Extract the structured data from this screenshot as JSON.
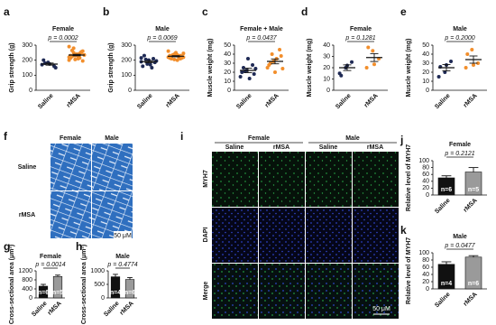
{
  "chart_data": [
    {
      "panel": "a",
      "type": "dot",
      "title": "Female",
      "annotation": "p = 0.0002",
      "ylabel": "Grip strength (g)",
      "categories": [
        "Saline",
        "rMSA"
      ],
      "colors": [
        "#1f2a55",
        "#f28e2b"
      ],
      "ylim": [
        0,
        300
      ],
      "yticks": [
        0,
        100,
        200,
        300
      ],
      "points": [
        [
          170,
          185,
          160,
          200,
          175,
          150,
          180
        ],
        [
          200,
          230,
          250,
          215,
          240,
          260,
          225,
          210,
          235,
          280,
          245,
          220,
          205,
          255,
          230,
          240,
          195,
          265,
          225,
          235,
          250,
          215,
          290,
          230
        ]
      ],
      "means": [
        174,
        234
      ],
      "errors": [
        7,
        5
      ]
    },
    {
      "panel": "b",
      "type": "dot",
      "title": "Male",
      "annotation": "p = 0.0069",
      "ylabel": "Grip strength (g)",
      "categories": [
        "Saline",
        "rMSA"
      ],
      "colors": [
        "#1f2a55",
        "#f28e2b"
      ],
      "ylim": [
        0,
        300
      ],
      "yticks": [
        0,
        100,
        200,
        300
      ],
      "points": [
        [
          190,
          175,
          210,
          160,
          200,
          185,
          230,
          170,
          195,
          205,
          150,
          215
        ],
        [
          220,
          240,
          210,
          230,
          250,
          215,
          225,
          200,
          245,
          235,
          220,
          260,
          205,
          230,
          215,
          240,
          225,
          210,
          235,
          220
        ]
      ],
      "means": [
        190,
        226
      ],
      "errors": [
        7,
        4
      ]
    },
    {
      "panel": "c",
      "type": "dot",
      "title": "Female + Male",
      "annotation": "p = 0.0437",
      "ylabel": "Muscle weight (mg)",
      "categories": [
        "Saline",
        "rMSA"
      ],
      "colors": [
        "#1f2a55",
        "#f28e2b"
      ],
      "ylim": [
        0,
        50
      ],
      "yticks": [
        0,
        10,
        20,
        30,
        40,
        50
      ],
      "points": [
        [
          15,
          22,
          28,
          20,
          35,
          18,
          25,
          13,
          24,
          21
        ],
        [
          25,
          32,
          45,
          28,
          20,
          38,
          30,
          35,
          24,
          40
        ]
      ],
      "means": [
        22,
        32
      ],
      "errors": [
        2.5,
        2.7
      ]
    },
    {
      "panel": "d",
      "type": "dot",
      "title": "Female",
      "annotation": "p = 0.1281",
      "ylabel": "Muscle weight (mg)",
      "categories": [
        "Saline",
        "rMSA"
      ],
      "colors": [
        "#1f2a55",
        "#f28e2b"
      ],
      "ylim": [
        0,
        40
      ],
      "yticks": [
        0,
        10,
        20,
        30,
        40
      ],
      "points": [
        [
          15,
          20,
          25,
          13,
          22
        ],
        [
          20,
          35,
          28,
          38,
          23
        ]
      ],
      "means": [
        20,
        29
      ],
      "errors": [
        2.5,
        3.5
      ]
    },
    {
      "panel": "e",
      "type": "dot",
      "title": "Male",
      "annotation": "p = 0.2000",
      "ylabel": "Muscle weight (mg)",
      "categories": [
        "Saline",
        "rMSA"
      ],
      "colors": [
        "#1f2a55",
        "#f28e2b"
      ],
      "ylim": [
        0,
        50
      ],
      "yticks": [
        0,
        10,
        20,
        30,
        40,
        50
      ],
      "points": [
        [
          15,
          20,
          32,
          26,
          28
        ],
        [
          25,
          45,
          30,
          40,
          28
        ]
      ],
      "means": [
        25,
        34
      ],
      "errors": [
        3.5,
        4
      ]
    },
    {
      "panel": "g",
      "type": "bar",
      "title": "Female",
      "annotation": "p = 0.0014",
      "ylabel": "Cross-sectional area (μm²)",
      "categories": [
        "Saline",
        "rMSA"
      ],
      "colors": [
        "#111111",
        "#9a9a9a"
      ],
      "ylim": [
        0,
        1200
      ],
      "yticks": [
        0,
        400,
        800,
        1200
      ],
      "values": [
        520,
        950
      ],
      "errors": [
        80,
        60
      ],
      "n_labels": [
        "n=6",
        "n=5"
      ]
    },
    {
      "panel": "h",
      "type": "bar",
      "title": "Male",
      "annotation": "p = 0.4774",
      "ylabel": "Cross-sectional area (μm²)",
      "categories": [
        "Saline",
        "rMSA"
      ],
      "colors": [
        "#111111",
        "#9a9a9a"
      ],
      "ylim": [
        0,
        1000
      ],
      "yticks": [
        0,
        500,
        1000
      ],
      "values": [
        780,
        680
      ],
      "errors": [
        90,
        70
      ],
      "n_labels": [
        "n=4",
        "n=6"
      ]
    },
    {
      "panel": "j",
      "type": "bar",
      "title": "Female",
      "annotation": "p = 0.2121",
      "ylabel": "Relative level of MYH7",
      "categories": [
        "Saline",
        "rMSA"
      ],
      "colors": [
        "#111111",
        "#9a9a9a"
      ],
      "ylim": [
        0,
        100
      ],
      "yticks": [
        0,
        20,
        40,
        60,
        80,
        100
      ],
      "values": [
        50,
        67
      ],
      "errors": [
        6,
        13
      ],
      "n_labels": [
        "n=6",
        "n=5"
      ]
    },
    {
      "panel": "k",
      "type": "bar",
      "title": "Male",
      "annotation": "p = 0.0477",
      "ylabel": "Relative level of MYH7",
      "categories": [
        "Saline",
        "rMSA"
      ],
      "colors": [
        "#111111",
        "#9a9a9a"
      ],
      "ylim": [
        0,
        100
      ],
      "yticks": [
        0,
        20,
        40,
        60,
        80,
        100
      ],
      "values": [
        68,
        88
      ],
      "errors": [
        7,
        4
      ],
      "n_labels": [
        "n=4",
        "n=6"
      ]
    }
  ],
  "images": [
    {
      "panel": "f",
      "columns": [
        "Female",
        "Male"
      ],
      "rows": [
        "Saline",
        "rMSA"
      ],
      "scale": "50 μM"
    },
    {
      "panel": "i",
      "groups": [
        "Female",
        "Male"
      ],
      "columns": [
        "Saline",
        "rMSA",
        "Saline",
        "rMSA"
      ],
      "rows": [
        "MYH7",
        "DAPI",
        "Merge"
      ],
      "scale": "50 μM"
    }
  ]
}
